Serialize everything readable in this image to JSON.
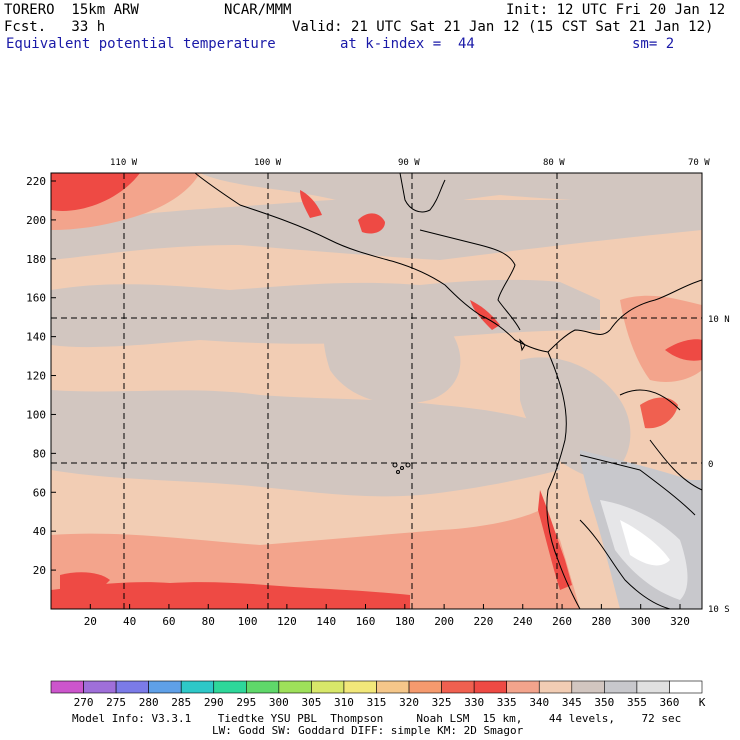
{
  "header": {
    "model": "TORERO  15km ARW",
    "org": "NCAR/MMM",
    "init": "Init: 12 UTC Fri 20 Jan 12",
    "fcst": "Fcst.   33 h",
    "valid": "Valid: 21 UTC Sat 21 Jan 12 (15 CST Sat 21 Jan 12)",
    "field": "Equivalent potential temperature",
    "level": "at k-index =  44",
    "smooth": "sm= 2"
  },
  "map": {
    "top_labels": [
      "110 W",
      "100 W",
      "90 W",
      "80 W",
      "70 W"
    ],
    "right_labels": [
      "10 N",
      "0",
      "10 S"
    ],
    "y_ticks": [
      "20",
      "40",
      "60",
      "80",
      "100",
      "120",
      "140",
      "160",
      "180",
      "200",
      "220"
    ],
    "x_ticks": [
      "20",
      "40",
      "60",
      "80",
      "100",
      "120",
      "140",
      "160",
      "180",
      "200",
      "220",
      "240",
      "260",
      "280",
      "300",
      "320"
    ]
  },
  "colorbar": {
    "labels": [
      "270",
      "275",
      "280",
      "285",
      "290",
      "295",
      "300",
      "305",
      "310",
      "315",
      "320",
      "325",
      "330",
      "335",
      "340",
      "345",
      "350",
      "355",
      "360"
    ],
    "unit": "K",
    "colors": [
      "#cc55cc",
      "#9f6fd9",
      "#7b7be8",
      "#5fa0e8",
      "#2ec8c8",
      "#2ed79a",
      "#5fd86a",
      "#9ee05a",
      "#d8e86a",
      "#f2e87a",
      "#f5c78a",
      "#f59a6e",
      "#f06050",
      "#ee4a44",
      "#f3a48c",
      "#f2cdb4",
      "#d2c6c0",
      "#c8c8cc",
      "#e0e0e0",
      "#ffffff"
    ]
  },
  "footer": {
    "line1": "Model Info: V3.3.1    Tiedtke YSU PBL  Thompson     Noah LSM  15 km,    44 levels,    72 sec",
    "line2": "LW: Godd SW: Goddard DIFF: simple KM: 2D Smagor"
  }
}
